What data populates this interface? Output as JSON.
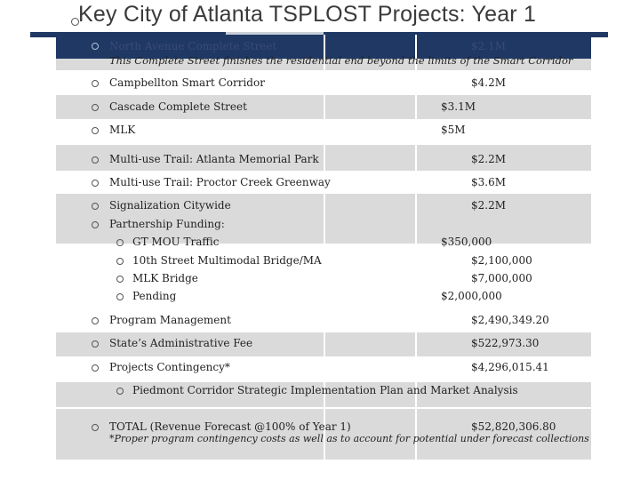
{
  "title": "Key City of Atlanta TSPLOST Projects:  Year 1",
  "rows": [
    {
      "label": "North Avenue Complete Street",
      "amount": "$2.1M",
      "note": "This Complete Street finishes the residential end beyond the limits of the Smart Corridor"
    },
    {
      "label": "Campbellton Smart Corridor",
      "amount": "$4.2M"
    },
    {
      "label": "Cascade Complete Street",
      "amount": "$3.1M"
    },
    {
      "label": "MLK",
      "amount": "$5M"
    },
    {
      "label": "Multi-use Trail: Atlanta Memorial Park",
      "amount": "$2.2M"
    },
    {
      "label": "Multi-use Trail: Proctor Creek Greenway",
      "amount": "$3.6M"
    },
    {
      "label": "Signalization Citywide",
      "amount": "$2.2M"
    },
    {
      "label": "Partnership Funding:"
    }
  ],
  "partnership": [
    {
      "label": "GT MOU Traffic",
      "amount": "$350,000"
    },
    {
      "label": "10th Street Multimodal Bridge/MA",
      "amount": "$2,100,000"
    },
    {
      "label": "MLK Bridge",
      "amount": "$7,000,000"
    },
    {
      "label": "Pending",
      "amount": "$2,000,000"
    }
  ],
  "rows2": [
    {
      "label": "Program Management",
      "amount": "$2,490,349.20"
    },
    {
      "label": "State’s Administrative Fee",
      "amount": "$522,973.30"
    },
    {
      "label": "Projects Contingency*",
      "amount": "$4,296,015.41"
    }
  ],
  "piedmont": "Piedmont Corridor Strategic Implementation Plan and Market Analysis",
  "total": {
    "label": "TOTAL (Revenue Forecast @100% of Year 1)",
    "amount": "$52,820,306.80",
    "footnote": "*Proper program contingency costs as well as to account for potential under forecast collections"
  },
  "colors": {
    "header": "#1f3864",
    "band": "#dadada",
    "text": "#222222"
  }
}
